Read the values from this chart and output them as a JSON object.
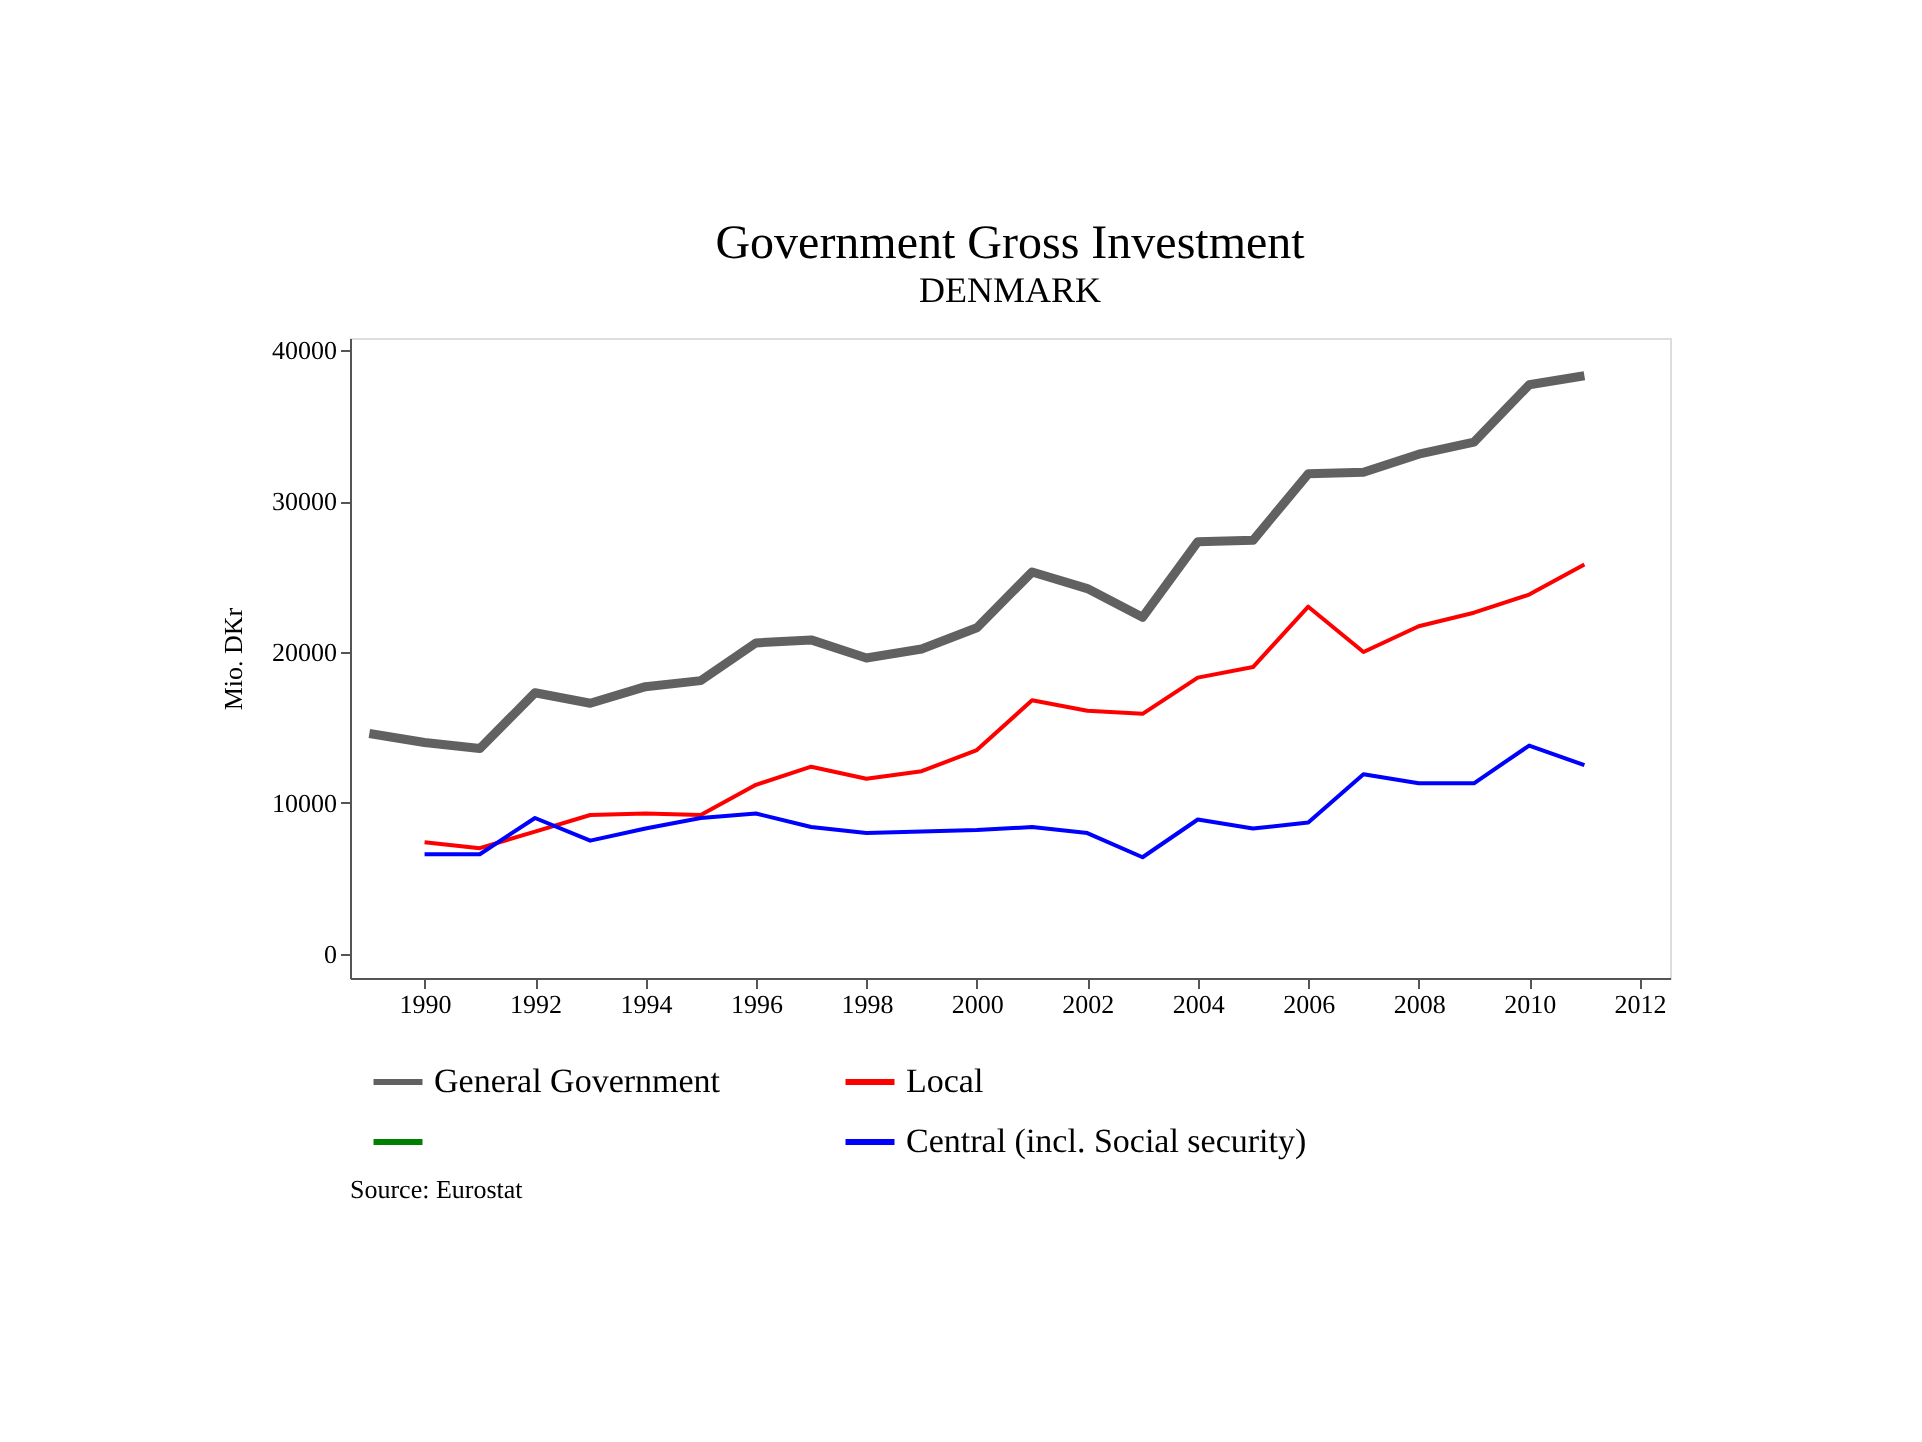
{
  "chart_data": {
    "type": "line",
    "title": "Government Gross Investment",
    "subtitle": "DENMARK",
    "ylabel": "Mio. DKr",
    "x": [
      1989,
      1990,
      1991,
      1992,
      1993,
      1994,
      1995,
      1996,
      1997,
      1998,
      1999,
      2000,
      2001,
      2002,
      2003,
      2004,
      2005,
      2006,
      2007,
      2008,
      2009,
      2010,
      2011
    ],
    "series": [
      {
        "name": "General Government",
        "color": "#616161",
        "values": [
          14600,
          14000,
          13600,
          17300,
          16600,
          17700,
          18100,
          20600,
          20800,
          19600,
          20200,
          21600,
          25300,
          24200,
          22300,
          27300,
          27400,
          31800,
          31900,
          33100,
          33900,
          37700,
          38300
        ]
      },
      {
        "name": "Local",
        "color": "#ff0000",
        "values": [
          null,
          7400,
          7000,
          8100,
          9200,
          9300,
          9200,
          11200,
          12400,
          11600,
          12100,
          13500,
          16800,
          16100,
          15900,
          18300,
          19000,
          23000,
          20000,
          21700,
          22600,
          23800,
          25800
        ]
      },
      {
        "color": "#008000",
        "values": [
          null,
          null,
          null,
          null,
          null,
          null,
          null,
          null,
          null,
          null,
          null,
          null,
          null,
          null,
          null,
          null,
          null,
          null,
          null,
          null,
          null,
          null,
          null
        ]
      },
      {
        "name": "Central (incl. Social security)",
        "color": "#0000ff",
        "values": [
          null,
          6600,
          6600,
          9000,
          7500,
          8300,
          9000,
          9300,
          8400,
          8000,
          8100,
          8200,
          8400,
          8000,
          6400,
          8900,
          8300,
          8700,
          11900,
          11300,
          11300,
          13800,
          12500
        ]
      }
    ],
    "xlim": [
      1988.65,
      2012.55
    ],
    "xticks": [
      1990,
      1992,
      1994,
      1996,
      1998,
      2000,
      2002,
      2004,
      2006,
      2008,
      2010,
      2012
    ],
    "ylim": [
      -1600,
      40800
    ],
    "yticks": [
      0,
      10000,
      20000,
      30000,
      40000
    ],
    "grid": false,
    "legend": "bottom",
    "marker": "none",
    "line_style": "solid",
    "annotations": [
      "Source: Eurostat"
    ]
  }
}
